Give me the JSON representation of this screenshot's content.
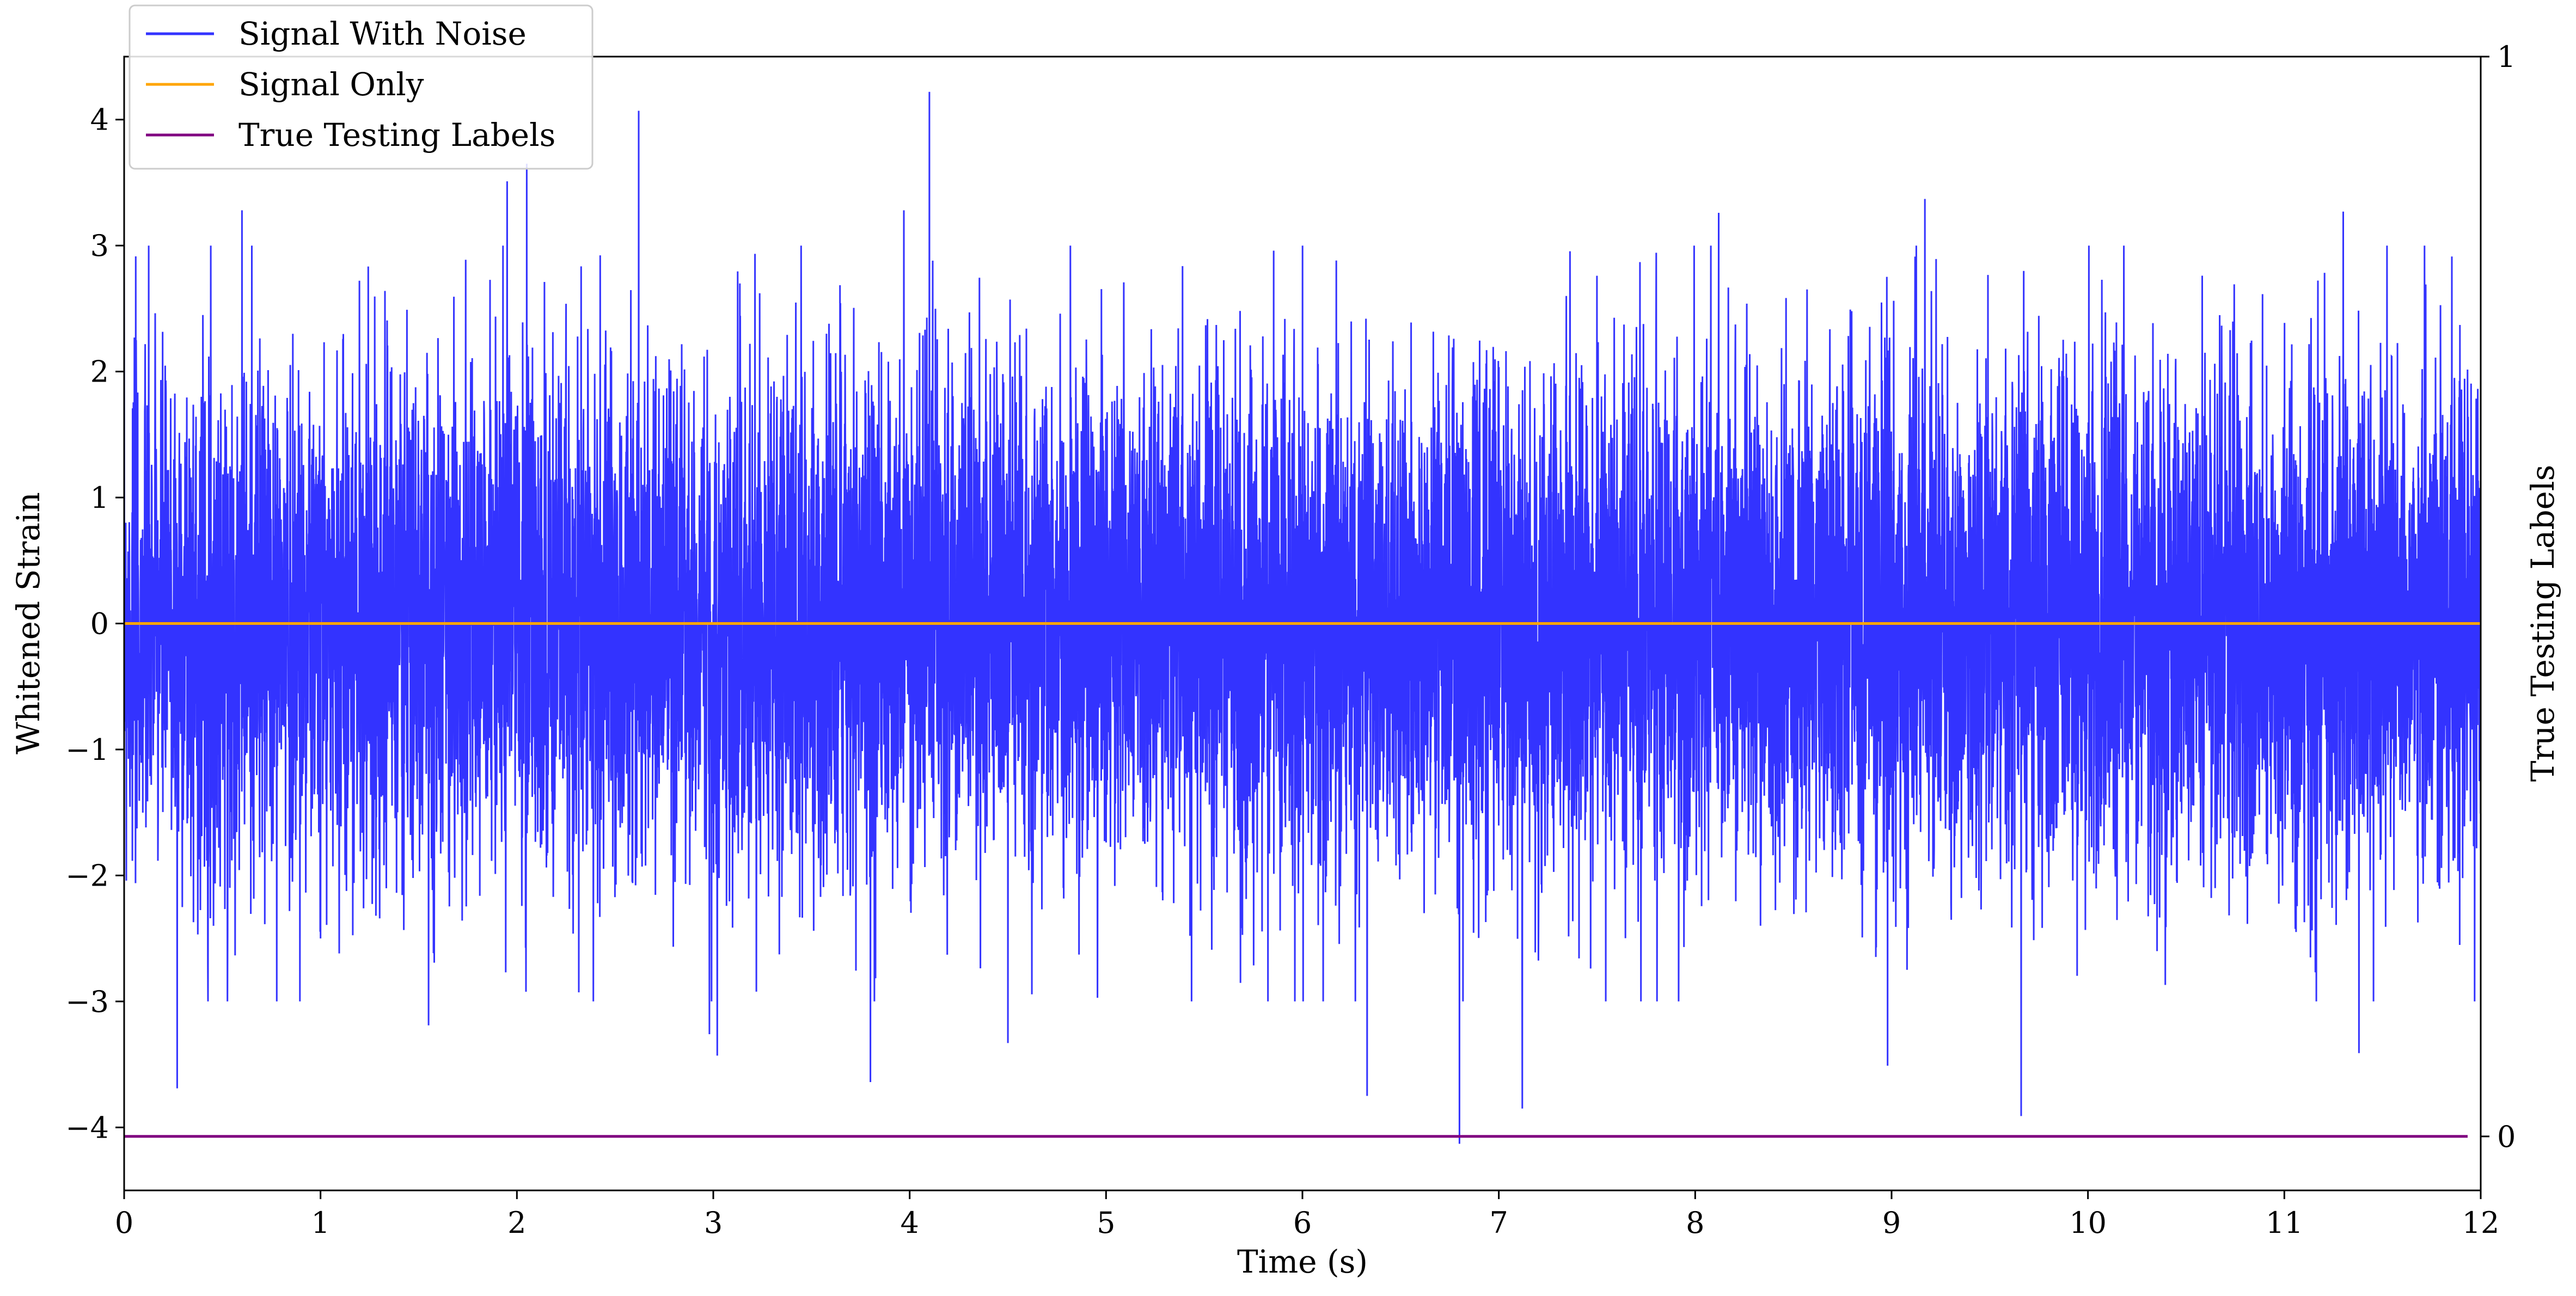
{
  "chart_data": {
    "type": "line",
    "xlabel": "Time (s)",
    "ylabel": "Whitened Strain",
    "y2label": "True Testing Labels",
    "xlim": [
      0,
      12
    ],
    "ylim": [
      -4.5,
      4.5
    ],
    "y2lim": [
      -0.05,
      1.0
    ],
    "x_ticks": [
      "0",
      "1",
      "2",
      "3",
      "4",
      "5",
      "6",
      "7",
      "8",
      "9",
      "10",
      "11",
      "12"
    ],
    "y_ticks": [
      "−4",
      "−3",
      "−2",
      "−1",
      "0",
      "1",
      "2",
      "3",
      "4"
    ],
    "y2_ticks": [
      "0",
      "1"
    ],
    "legend_position": "top-left",
    "grid": false,
    "series": [
      {
        "name": "Signal With Noise",
        "color": "#3333ff",
        "axis": "left",
        "x_range": [
          0,
          12
        ],
        "envelope_sigma": 1.0,
        "peaks": [
          {
            "x": 0.27,
            "y": 3.34
          },
          {
            "x": 0.27,
            "y": -3.69
          },
          {
            "x": 0.6,
            "y": 3.28
          },
          {
            "x": 1.0,
            "y": -2.5
          },
          {
            "x": 1.55,
            "y": -3.19
          },
          {
            "x": 1.95,
            "y": 3.51
          },
          {
            "x": 2.05,
            "y": 3.65
          },
          {
            "x": 2.62,
            "y": 4.07
          },
          {
            "x": 2.98,
            "y": -3.26
          },
          {
            "x": 3.02,
            "y": -3.43
          },
          {
            "x": 3.8,
            "y": -3.64
          },
          {
            "x": 3.97,
            "y": 3.28
          },
          {
            "x": 4.1,
            "y": 4.22
          },
          {
            "x": 4.5,
            "y": -3.33
          },
          {
            "x": 6.33,
            "y": -3.75
          },
          {
            "x": 6.8,
            "y": -4.13
          },
          {
            "x": 7.12,
            "y": -3.85
          },
          {
            "x": 8.12,
            "y": 3.26
          },
          {
            "x": 8.98,
            "y": -3.51
          },
          {
            "x": 9.17,
            "y": 3.37
          },
          {
            "x": 9.66,
            "y": -3.91
          },
          {
            "x": 11.3,
            "y": 3.27
          },
          {
            "x": 11.38,
            "y": -3.41
          }
        ]
      },
      {
        "name": "Signal Only",
        "color": "#ffa500",
        "axis": "left",
        "x": [
          0,
          12
        ],
        "values": [
          0,
          0
        ]
      },
      {
        "name": "True Testing Labels",
        "color": "#800080",
        "axis": "right",
        "x": [
          0,
          12
        ],
        "values": [
          0,
          0
        ]
      }
    ]
  }
}
